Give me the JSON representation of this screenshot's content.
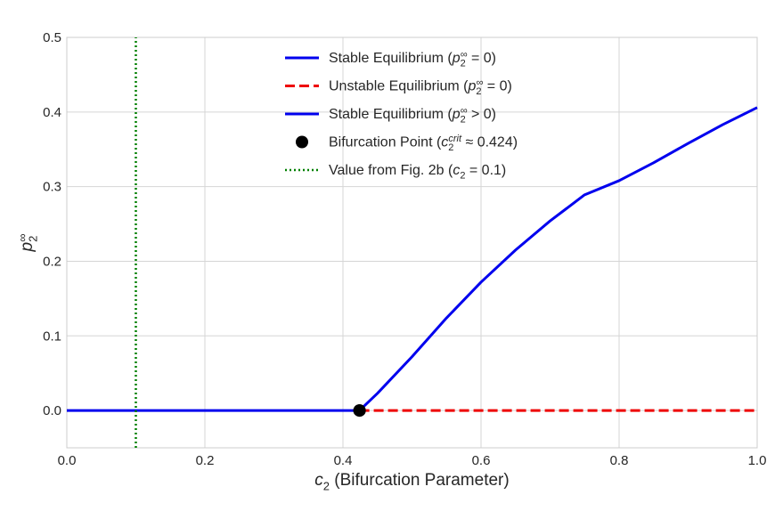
{
  "chart_data": {
    "type": "line",
    "xlabel": {
      "var": "c",
      "sub": "2",
      "text": " (Bifurcation Parameter)"
    },
    "ylabel": {
      "var": "p",
      "sub": "2",
      "sup": "∞"
    },
    "xlim": [
      0.0,
      1.0
    ],
    "ylim": [
      -0.05,
      0.5
    ],
    "xticks": [
      "0.0",
      "0.2",
      "0.4",
      "0.6",
      "0.8",
      "1.0"
    ],
    "yticks": [
      "0.0",
      "0.1",
      "0.2",
      "0.3",
      "0.4",
      "0.5"
    ],
    "grid": true,
    "legend_position": "top-center",
    "critical_c2": 0.424,
    "series": [
      {
        "name": "Stable Equilibrium (p₂^∞ = 0)",
        "color": "#0000ee",
        "style": "solid",
        "x": [
          0.0,
          0.424
        ],
        "y": [
          0.0,
          0.0
        ]
      },
      {
        "name": "Unstable Equilibrium (p₂^∞ = 0)",
        "color": "#ee0000",
        "style": "dashed",
        "x": [
          0.424,
          1.0
        ],
        "y": [
          0.0,
          0.0
        ]
      },
      {
        "name": "Stable Equilibrium (p₂^∞ > 0)",
        "color": "#0000ee",
        "style": "solid",
        "x": [
          0.424,
          0.45,
          0.5,
          0.55,
          0.6,
          0.65,
          0.7,
          0.75,
          0.8,
          0.85,
          0.9,
          0.95,
          1.0
        ],
        "y": [
          0.0,
          0.023,
          0.072,
          0.124,
          0.172,
          0.215,
          0.254,
          0.289,
          0.308,
          0.332,
          0.358,
          0.383,
          0.406
        ]
      },
      {
        "name": "Bifurcation Point (c₂^crit ≈ 0.424)",
        "color": "#000000",
        "style": "marker",
        "x": [
          0.424
        ],
        "y": [
          0.0
        ]
      },
      {
        "name": "Value from Fig. 2b (c₂ = 0.1)",
        "color": "#008000",
        "style": "dotted-vertical",
        "x": [
          0.1,
          0.1
        ],
        "y": [
          -0.05,
          0.5
        ]
      }
    ],
    "legend": [
      {
        "kind": "line",
        "color": "#0000ee",
        "style": "solid",
        "pre": "Stable Equilibrium (",
        "var": "p",
        "sub": "2",
        "sup": "∞",
        "post": " = 0)"
      },
      {
        "kind": "line",
        "color": "#ee0000",
        "style": "dashed",
        "pre": "Unstable Equilibrium (",
        "var": "p",
        "sub": "2",
        "sup": "∞",
        "post": " = 0)"
      },
      {
        "kind": "line",
        "color": "#0000ee",
        "style": "solid",
        "pre": "Stable Equilibrium (",
        "var": "p",
        "sub": "2",
        "sup": "∞",
        "post": " > 0)"
      },
      {
        "kind": "marker",
        "color": "#000000",
        "style": "marker",
        "pre": "Bifurcation Point (",
        "var": "c",
        "sub": "2",
        "sup": "crit",
        "post": " ≈ 0.424)"
      },
      {
        "kind": "line",
        "color": "#008000",
        "style": "dotted",
        "pre": "Value from Fig. 2b (",
        "var": "c",
        "sub": "2",
        "sup": "",
        "post": " = 0.1)"
      }
    ]
  }
}
